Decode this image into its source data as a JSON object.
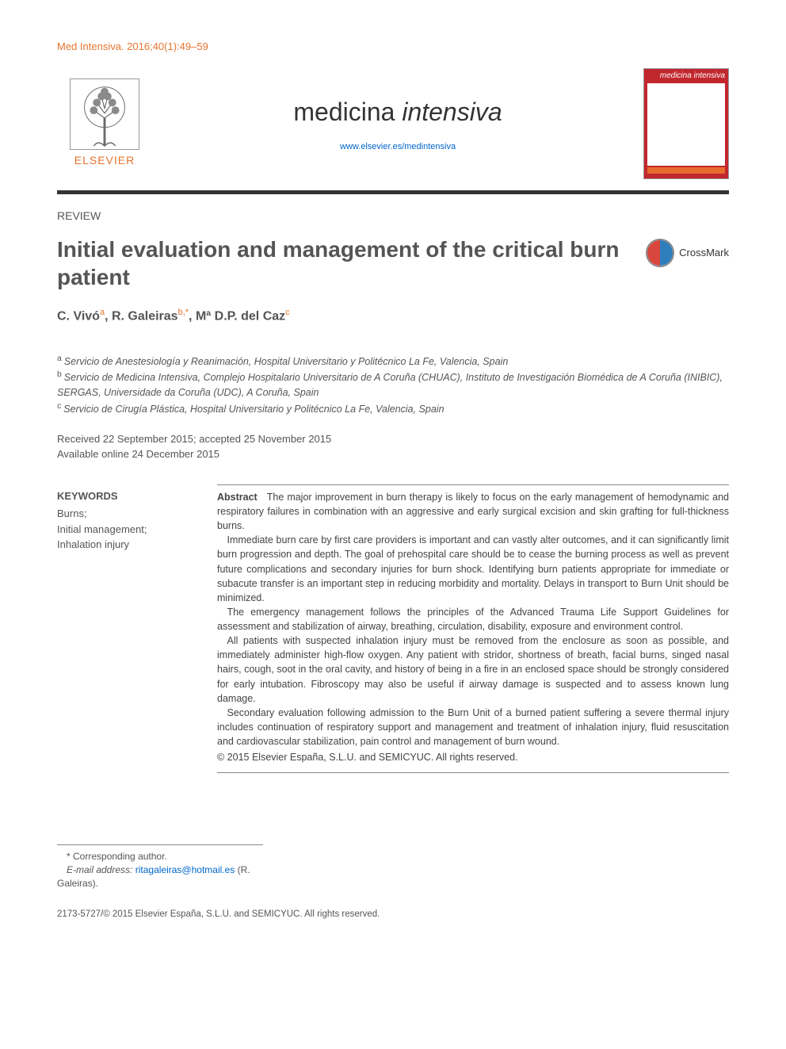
{
  "colors": {
    "accent_orange": "#e6742e",
    "link_blue": "#0066cc",
    "text_body": "#444444",
    "text_heading": "#555555",
    "rule_dark": "#333333",
    "rule_light": "#888888",
    "cover_red": "#c1272d",
    "crossmark_red": "#d9463d",
    "crossmark_blue": "#2e7ebb",
    "background": "#ffffff"
  },
  "typography": {
    "body_font": "Arial, Helvetica, sans-serif",
    "title_size_pt": 28,
    "journal_name_size_pt": 32,
    "body_size_pt": 13,
    "abstract_size_pt": 12.5
  },
  "running_head": "Med Intensiva. 2016;40(1):49–59",
  "masthead": {
    "publisher_logo_text": "ELSEVIER",
    "journal_name_plain": "medicina",
    "journal_name_italic": "intensiva",
    "journal_url": "www.elsevier.es/medintensiva",
    "cover_title": "medicina intensiva"
  },
  "article": {
    "type": "REVIEW",
    "title": "Initial evaluation and management of the critical burn patient",
    "crossmark_label": "CrossMark",
    "authors_html": "C. Vivó<sup>a</sup>, R. Galeiras<sup>b,*</sup>, Mª D.P. del Caz<sup>c</sup>",
    "affiliations": [
      {
        "sup": "a",
        "text": "Servicio de Anestesiología y Reanimación, Hospital Universitario y Politécnico La Fe, Valencia, Spain"
      },
      {
        "sup": "b",
        "text": "Servicio de Medicina Intensiva, Complejo Hospitalario Universitario de A Coruña (CHUAC), Instituto de Investigación Biomédica de A Coruña (INIBIC), SERGAS, Universidade da Coruña (UDC), A Coruña, Spain"
      },
      {
        "sup": "c",
        "text": "Servicio de Cirugía Plástica, Hospital Universitario y Politécnico La Fe, Valencia, Spain"
      }
    ],
    "received_accepted": "Received 22 September 2015; accepted 25 November 2015",
    "available_online": "Available online 24 December 2015"
  },
  "keywords": {
    "heading": "KEYWORDS",
    "items": "Burns;\nInitial management;\nInhalation injury"
  },
  "abstract": {
    "heading": "Abstract",
    "p1": "The major improvement in burn therapy is likely to focus on the early management of hemodynamic and respiratory failures in combination with an aggressive and early surgical excision and skin grafting for full-thickness burns.",
    "p2": "Immediate burn care by first care providers is important and can vastly alter outcomes, and it can significantly limit burn progression and depth. The goal of prehospital care should be to cease the burning process as well as prevent future complications and secondary injuries for burn shock. Identifying burn patients appropriate for immediate or subacute transfer is an important step in reducing morbidity and mortality. Delays in transport to Burn Unit should be minimized.",
    "p3": "The emergency management follows the principles of the Advanced Trauma Life Support Guidelines for assessment and stabilization of airway, breathing, circulation, disability, exposure and environment control.",
    "p4": "All patients with suspected inhalation injury must be removed from the enclosure as soon as possible, and immediately administer high-flow oxygen. Any patient with stridor, shortness of breath, facial burns, singed nasal hairs, cough, soot in the oral cavity, and history of being in a fire in an enclosed space should be strongly considered for early intubation. Fibroscopy may also be useful if airway damage is suspected and to assess known lung damage.",
    "p5": "Secondary evaluation following admission to the Burn Unit of a burned patient suffering a severe thermal injury includes continuation of respiratory support and management and treatment of inhalation injury, fluid resuscitation and cardiovascular stabilization, pain control and management of burn wound.",
    "copyright": "© 2015 Elsevier España, S.L.U. and SEMICYUC. All rights reserved."
  },
  "footnotes": {
    "corresp_marker": "*",
    "corresp_text": "Corresponding author.",
    "email_label": "E-mail address:",
    "email": "ritagaleiras@hotmail.es",
    "email_author": "(R. Galeiras)."
  },
  "footer_copyright": "2173-5727/© 2015 Elsevier España, S.L.U. and SEMICYUC. All rights reserved."
}
